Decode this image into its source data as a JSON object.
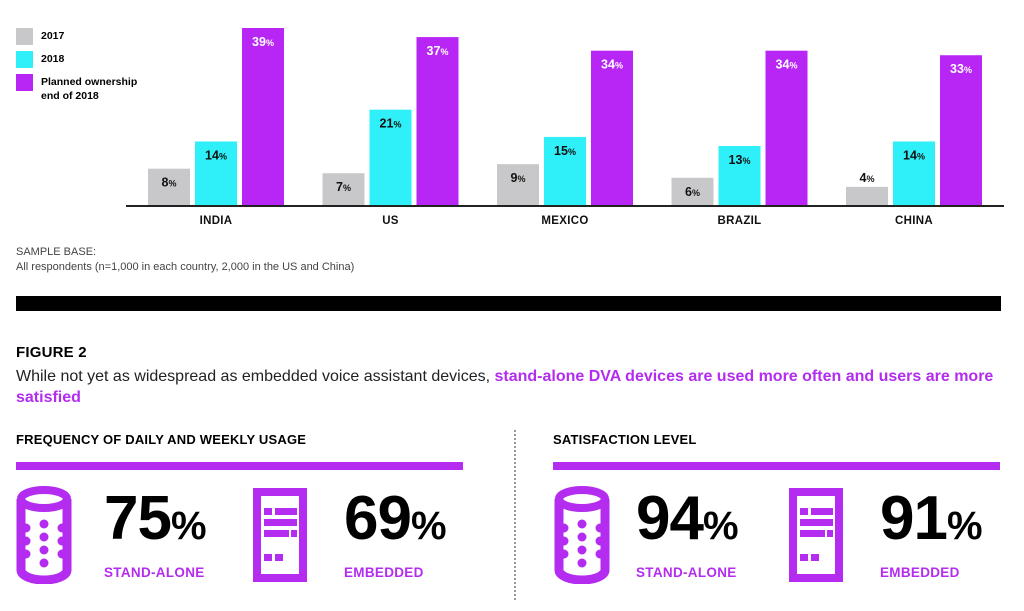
{
  "colors": {
    "y2017": "#c8c8ca",
    "y2018": "#2ff0f8",
    "planned": "#b826f5",
    "accent": "#b32cf0",
    "axis": "#222222"
  },
  "chart_data": {
    "type": "bar",
    "title": "",
    "xlabel": "",
    "ylabel": "",
    "ylim": [
      0,
      40
    ],
    "grid": false,
    "legend_position": "top-left",
    "categories": [
      "INDIA",
      "US",
      "MEXICO",
      "BRAZIL",
      "CHINA"
    ],
    "series": [
      {
        "name": "2017",
        "key": "y2017",
        "values": [
          8,
          7,
          9,
          6,
          4
        ]
      },
      {
        "name": "2018",
        "key": "y2018",
        "values": [
          14,
          21,
          15,
          13,
          14
        ]
      },
      {
        "name": "Planned ownership end of 2018",
        "key": "planned",
        "values": [
          39,
          37,
          34,
          34,
          33
        ]
      }
    ],
    "value_suffix": "%"
  },
  "legend": {
    "items": [
      {
        "label": "2017"
      },
      {
        "label": "2018"
      },
      {
        "label": "Planned ownership end of 2018"
      }
    ]
  },
  "sample_base": {
    "heading": "SAMPLE BASE:",
    "text": "All respondents (n=1,000 in each country, 2,000 in the US and China)"
  },
  "figure2": {
    "title": "FIGURE 2",
    "desc_plain": "While not yet as widespread as embedded voice assistant devices, ",
    "desc_highlight": "stand-alone DVA devices are used more often and users are more satisfied"
  },
  "sections": [
    {
      "title": "FREQUENCY OF DAILY AND WEEKLY USAGE",
      "stats": [
        {
          "icon": "smart-speaker-icon",
          "value": "75",
          "unit": "%",
          "label": "STAND-ALONE"
        },
        {
          "icon": "embedded-device-icon",
          "value": "69",
          "unit": "%",
          "label": "EMBEDDED"
        }
      ]
    },
    {
      "title": "SATISFACTION LEVEL",
      "stats": [
        {
          "icon": "smart-speaker-icon",
          "value": "94",
          "unit": "%",
          "label": "STAND-ALONE"
        },
        {
          "icon": "embedded-device-icon",
          "value": "91",
          "unit": "%",
          "label": "EMBEDDED"
        }
      ]
    }
  ]
}
